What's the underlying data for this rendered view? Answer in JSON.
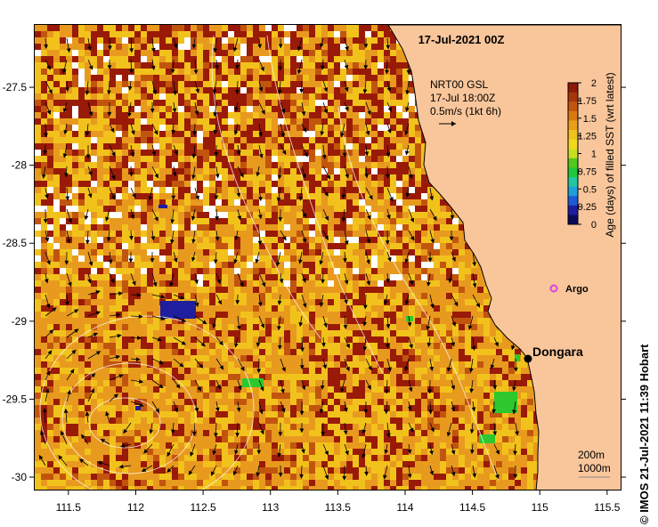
{
  "map": {
    "title": "17-Jul-2021 00Z",
    "credit": "© IMOS 21-Jul-2021 11:39 Hobart",
    "x_ticks": [
      "111.5",
      "112",
      "112.5",
      "113",
      "113.5",
      "114",
      "114.5",
      "115",
      "115.5"
    ],
    "y_ticks": [
      "-27.5",
      "-28",
      "-28.5",
      "-29",
      "-29.5",
      "-30"
    ],
    "x_range": [
      111.25,
      115.6
    ],
    "y_range": [
      -30.08,
      -27.1
    ]
  },
  "current_legend": {
    "line1": "NRT00 GSL",
    "line2": "17-Jul 18:00Z",
    "line3": "0.5m/s (1kt 6h)"
  },
  "colorbar": {
    "title": "Age (days) of filled SST (wrt latest)",
    "ticks": [
      "2",
      "1.75",
      "1.5",
      "1.25",
      "1",
      "0.75",
      "0.5",
      "0.25",
      "0"
    ],
    "colors": [
      "#8b1a0a",
      "#a8360c",
      "#c2550e",
      "#d97a10",
      "#e89e16",
      "#f0c21e",
      "#f3d81e",
      "#c8df1e",
      "#52c81e",
      "#1fc83a",
      "#1fc8a0",
      "#1fa0d8",
      "#1e5ad8",
      "#1e1e9e",
      "#0a0a5a"
    ]
  },
  "markers": {
    "argo_label": "Argo",
    "town_label": "Dongara",
    "argo_color": "#e040e0"
  },
  "scale_legend": {
    "line1": "200m",
    "line2": "1000m"
  },
  "colors": {
    "land": "#f9c69b",
    "dark_red": "#9a1a08",
    "orange": "#e89a1e",
    "yellow": "#f2c21c",
    "blue": "#1e1e9e",
    "green": "#2ec82e"
  }
}
